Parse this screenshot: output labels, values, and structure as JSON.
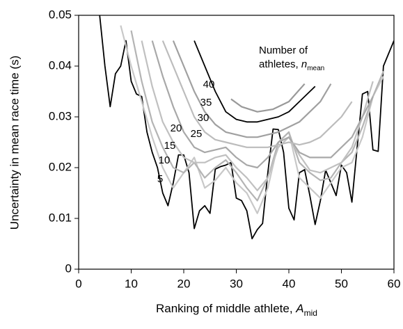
{
  "chart_data": {
    "type": "line",
    "xlabel": "Ranking of middle athlete, ",
    "xlabel_var": "A",
    "xlabel_sub": "mid",
    "ylabel": "Uncertainty in mean race time (s)",
    "annotation": "Number of",
    "annotation_line2": "athletes, ",
    "annotation_var": "n",
    "annotation_sub": "mean",
    "xlim": [
      0,
      60
    ],
    "xticks": [
      0,
      10,
      20,
      30,
      40,
      50,
      60
    ],
    "ylim": [
      0,
      0.05
    ],
    "yticks": [
      0,
      0.01,
      0.02,
      0.03,
      0.04,
      0.05
    ],
    "series": [
      {
        "color": "#000000",
        "x": [
          4,
          5,
          6,
          7,
          8,
          9,
          10,
          11,
          12,
          13,
          14,
          15,
          16,
          17,
          18,
          19,
          20,
          21,
          22,
          23,
          24,
          25,
          26,
          27,
          28,
          29,
          30,
          31,
          32,
          33,
          34,
          35,
          36,
          37,
          38,
          39,
          40,
          41,
          42,
          43,
          44,
          45,
          46,
          47,
          48,
          49,
          50,
          51,
          52,
          53,
          54,
          55,
          56,
          57,
          58,
          59,
          60
        ],
        "values": [
          0.05,
          0.04,
          0.032,
          0.0385,
          0.04,
          0.045,
          0.037,
          0.0345,
          0.034,
          0.027,
          0.023,
          0.02,
          0.015,
          0.0125,
          0.017,
          0.0225,
          0.0225,
          0.019,
          0.008,
          0.0115,
          0.0125,
          0.011,
          0.0197,
          0.0202,
          0.0205,
          0.021,
          0.014,
          0.0135,
          0.0115,
          0.006,
          0.0078,
          0.009,
          0.019,
          0.0276,
          0.0275,
          0.023,
          0.012,
          0.0097,
          0.019,
          0.0196,
          0.0145,
          0.0088,
          0.0135,
          0.0195,
          0.017,
          0.0145,
          0.0205,
          0.019,
          0.0132,
          0.024,
          0.0345,
          0.035,
          0.0235,
          0.0232,
          0.04,
          0.0425,
          0.045
        ]
      },
      {
        "name": "5",
        "color": "#c8c8c8",
        "x": [
          8,
          10,
          12,
          14,
          16,
          18,
          20,
          22,
          24,
          26,
          28,
          30,
          32,
          34,
          36,
          38,
          40,
          42,
          44,
          46,
          48,
          50,
          52,
          54,
          56,
          58
        ],
        "values": [
          0.048,
          0.04,
          0.033,
          0.026,
          0.02,
          0.016,
          0.019,
          0.022,
          0.016,
          0.0175,
          0.02,
          0.017,
          0.015,
          0.011,
          0.016,
          0.025,
          0.027,
          0.018,
          0.016,
          0.014,
          0.017,
          0.02,
          0.021,
          0.026,
          0.034,
          0.038
        ]
      },
      {
        "name": "10",
        "color": "#b4b4b4",
        "x": [
          10,
          12,
          14,
          16,
          18,
          20,
          22,
          24,
          26,
          28,
          30,
          32,
          34,
          36,
          38,
          40,
          42,
          44,
          46,
          48,
          50,
          52,
          54,
          56,
          58
        ],
        "values": [
          0.047,
          0.037,
          0.029,
          0.024,
          0.02,
          0.019,
          0.021,
          0.018,
          0.02,
          0.0215,
          0.019,
          0.016,
          0.0135,
          0.018,
          0.025,
          0.027,
          0.021,
          0.019,
          0.0175,
          0.018,
          0.021,
          0.023,
          0.028,
          0.034,
          0.039
        ]
      },
      {
        "name": "15",
        "color": "#c0c0c0",
        "x": [
          12,
          14,
          16,
          18,
          20,
          22,
          24,
          26,
          28,
          30,
          32,
          34,
          36,
          38,
          40,
          42,
          44,
          46,
          48,
          50,
          52,
          54,
          56
        ],
        "values": [
          0.045,
          0.036,
          0.029,
          0.025,
          0.022,
          0.021,
          0.021,
          0.022,
          0.0225,
          0.02,
          0.018,
          0.0155,
          0.018,
          0.024,
          0.026,
          0.0225,
          0.0195,
          0.019,
          0.02,
          0.021,
          0.024,
          0.03,
          0.037
        ]
      },
      {
        "name": "20",
        "color": "#a8a8a8",
        "x": [
          14,
          16,
          18,
          20,
          22,
          24,
          26,
          28,
          30,
          32,
          34,
          36,
          38,
          40,
          42,
          44,
          46,
          48,
          50,
          52,
          54,
          56
        ],
        "values": [
          0.045,
          0.038,
          0.032,
          0.027,
          0.024,
          0.023,
          0.0235,
          0.024,
          0.022,
          0.0205,
          0.02,
          0.022,
          0.025,
          0.026,
          0.023,
          0.022,
          0.022,
          0.022,
          0.024,
          0.026,
          0.03,
          0.034
        ]
      },
      {
        "name": "25",
        "color": "#bcbcbc",
        "x": [
          16,
          18,
          20,
          22,
          24,
          26,
          28,
          30,
          32,
          34,
          36,
          38,
          40,
          42,
          44,
          46,
          48,
          50,
          52
        ],
        "values": [
          0.045,
          0.04,
          0.035,
          0.03,
          0.027,
          0.0255,
          0.025,
          0.0245,
          0.024,
          0.024,
          0.024,
          0.0245,
          0.025,
          0.0245,
          0.025,
          0.026,
          0.028,
          0.03,
          0.033
        ]
      },
      {
        "name": "30",
        "color": "#a0a0a0",
        "x": [
          18,
          20,
          22,
          24,
          26,
          28,
          30,
          32,
          34,
          36,
          38,
          40,
          42,
          44,
          46,
          48
        ],
        "values": [
          0.045,
          0.04,
          0.035,
          0.031,
          0.0285,
          0.027,
          0.0265,
          0.026,
          0.026,
          0.0265,
          0.027,
          0.028,
          0.029,
          0.031,
          0.033,
          0.0365
        ]
      },
      {
        "name": "35",
        "color": "#000000",
        "x": [
          22,
          24,
          26,
          28,
          30,
          32,
          34,
          36,
          38,
          40,
          42,
          45
        ],
        "values": [
          0.045,
          0.04,
          0.035,
          0.031,
          0.0295,
          0.029,
          0.029,
          0.0295,
          0.03,
          0.031,
          0.033,
          0.036
        ]
      },
      {
        "name": "40",
        "color": "#999999",
        "x": [
          29,
          31,
          34,
          37,
          40,
          43
        ],
        "values": [
          0.0335,
          0.032,
          0.031,
          0.0315,
          0.033,
          0.0365
        ]
      }
    ]
  }
}
